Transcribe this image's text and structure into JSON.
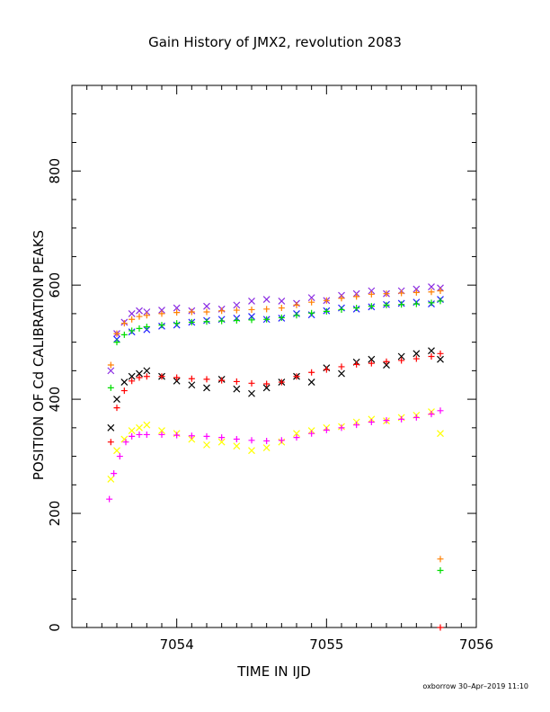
{
  "chart_data": {
    "type": "scatter",
    "title": "Gain History of JMX2, revolution 2083",
    "xlabel": "TIME IN IJD",
    "ylabel": "POSITION OF Cd CALIBRATION PEAKS",
    "xlim": [
      7053.3,
      7056.0
    ],
    "ylim": [
      0,
      950
    ],
    "xticks": [
      7054,
      7055,
      7056
    ],
    "yticks": [
      0,
      200,
      400,
      600,
      800
    ],
    "grid": false,
    "footer": "oxborrow 30–Apr–2019 11:10",
    "series": [
      {
        "color": "#8a2be2",
        "marker": "x",
        "points": [
          [
            7053.56,
            450
          ],
          [
            7053.6,
            515
          ],
          [
            7053.65,
            535
          ],
          [
            7053.7,
            550
          ],
          [
            7053.75,
            555
          ],
          [
            7053.8,
            553
          ],
          [
            7053.9,
            556
          ],
          [
            7054.0,
            560
          ],
          [
            7054.1,
            555
          ],
          [
            7054.2,
            563
          ],
          [
            7054.3,
            558
          ],
          [
            7054.4,
            565
          ],
          [
            7054.5,
            572
          ],
          [
            7054.6,
            575
          ],
          [
            7054.7,
            572
          ],
          [
            7054.8,
            568
          ],
          [
            7054.9,
            578
          ],
          [
            7055.0,
            573
          ],
          [
            7055.1,
            582
          ],
          [
            7055.2,
            585
          ],
          [
            7055.3,
            590
          ],
          [
            7055.4,
            585
          ],
          [
            7055.5,
            590
          ],
          [
            7055.6,
            593
          ],
          [
            7055.7,
            597
          ],
          [
            7055.76,
            595
          ]
        ]
      },
      {
        "color": "#ff7f00",
        "marker": "+",
        "points": [
          [
            7053.56,
            460
          ],
          [
            7053.6,
            515
          ],
          [
            7053.65,
            533
          ],
          [
            7053.7,
            540
          ],
          [
            7053.75,
            545
          ],
          [
            7053.8,
            547
          ],
          [
            7053.9,
            550
          ],
          [
            7054.0,
            552
          ],
          [
            7054.1,
            553
          ],
          [
            7054.2,
            553
          ],
          [
            7054.3,
            555
          ],
          [
            7054.4,
            556
          ],
          [
            7054.5,
            557
          ],
          [
            7054.6,
            558
          ],
          [
            7054.7,
            560
          ],
          [
            7054.8,
            565
          ],
          [
            7054.9,
            570
          ],
          [
            7055.0,
            573
          ],
          [
            7055.1,
            577
          ],
          [
            7055.2,
            580
          ],
          [
            7055.3,
            584
          ],
          [
            7055.4,
            585
          ],
          [
            7055.5,
            586
          ],
          [
            7055.6,
            587
          ],
          [
            7055.7,
            588
          ],
          [
            7055.76,
            590
          ],
          [
            7055.76,
            120
          ]
        ]
      },
      {
        "color": "#1f1fff",
        "marker": "x",
        "points": [
          [
            7053.6,
            505
          ],
          [
            7053.7,
            518
          ],
          [
            7053.8,
            522
          ],
          [
            7053.9,
            528
          ],
          [
            7054.0,
            530
          ],
          [
            7054.1,
            535
          ],
          [
            7054.2,
            538
          ],
          [
            7054.3,
            540
          ],
          [
            7054.4,
            542
          ],
          [
            7054.5,
            545
          ],
          [
            7054.6,
            540
          ],
          [
            7054.7,
            542
          ],
          [
            7054.8,
            550
          ],
          [
            7054.9,
            548
          ],
          [
            7055.0,
            555
          ],
          [
            7055.1,
            560
          ],
          [
            7055.2,
            558
          ],
          [
            7055.3,
            562
          ],
          [
            7055.4,
            566
          ],
          [
            7055.5,
            568
          ],
          [
            7055.6,
            570
          ],
          [
            7055.7,
            567
          ],
          [
            7055.76,
            575
          ]
        ]
      },
      {
        "color": "#00dd00",
        "marker": "+",
        "points": [
          [
            7053.56,
            420
          ],
          [
            7053.6,
            500
          ],
          [
            7053.65,
            513
          ],
          [
            7053.7,
            520
          ],
          [
            7053.75,
            524
          ],
          [
            7053.8,
            527
          ],
          [
            7053.9,
            530
          ],
          [
            7054.0,
            533
          ],
          [
            7054.1,
            535
          ],
          [
            7054.2,
            536
          ],
          [
            7054.3,
            537
          ],
          [
            7054.4,
            538
          ],
          [
            7054.5,
            539
          ],
          [
            7054.6,
            540
          ],
          [
            7054.7,
            543
          ],
          [
            7054.8,
            547
          ],
          [
            7054.9,
            551
          ],
          [
            7055.0,
            554
          ],
          [
            7055.1,
            557
          ],
          [
            7055.2,
            560
          ],
          [
            7055.3,
            563
          ],
          [
            7055.4,
            565
          ],
          [
            7055.5,
            566
          ],
          [
            7055.6,
            567
          ],
          [
            7055.7,
            569
          ],
          [
            7055.76,
            572
          ],
          [
            7055.76,
            100
          ]
        ]
      },
      {
        "color": "#000000",
        "marker": "x",
        "points": [
          [
            7053.56,
            350
          ],
          [
            7053.6,
            400
          ],
          [
            7053.65,
            430
          ],
          [
            7053.7,
            440
          ],
          [
            7053.75,
            445
          ],
          [
            7053.8,
            450
          ],
          [
            7053.9,
            440
          ],
          [
            7054.0,
            432
          ],
          [
            7054.1,
            425
          ],
          [
            7054.2,
            420
          ],
          [
            7054.3,
            435
          ],
          [
            7054.4,
            418
          ],
          [
            7054.5,
            410
          ],
          [
            7054.6,
            420
          ],
          [
            7054.7,
            430
          ],
          [
            7054.8,
            440
          ],
          [
            7054.9,
            430
          ],
          [
            7055.0,
            455
          ],
          [
            7055.1,
            445
          ],
          [
            7055.2,
            465
          ],
          [
            7055.3,
            470
          ],
          [
            7055.4,
            460
          ],
          [
            7055.5,
            475
          ],
          [
            7055.6,
            480
          ],
          [
            7055.7,
            485
          ],
          [
            7055.76,
            470
          ]
        ]
      },
      {
        "color": "#ff0000",
        "marker": "+",
        "points": [
          [
            7053.56,
            325
          ],
          [
            7053.6,
            385
          ],
          [
            7053.65,
            415
          ],
          [
            7053.7,
            432
          ],
          [
            7053.75,
            438
          ],
          [
            7053.8,
            440
          ],
          [
            7053.9,
            440
          ],
          [
            7054.0,
            438
          ],
          [
            7054.1,
            436
          ],
          [
            7054.2,
            435
          ],
          [
            7054.3,
            433
          ],
          [
            7054.4,
            431
          ],
          [
            7054.5,
            428
          ],
          [
            7054.6,
            427
          ],
          [
            7054.7,
            430
          ],
          [
            7054.8,
            440
          ],
          [
            7054.9,
            447
          ],
          [
            7055.0,
            452
          ],
          [
            7055.1,
            457
          ],
          [
            7055.2,
            461
          ],
          [
            7055.3,
            463
          ],
          [
            7055.4,
            466
          ],
          [
            7055.5,
            468
          ],
          [
            7055.6,
            471
          ],
          [
            7055.7,
            475
          ],
          [
            7055.76,
            480
          ],
          [
            7055.76,
            0
          ]
        ]
      },
      {
        "color": "#ffff00",
        "marker": "x",
        "points": [
          [
            7053.56,
            260
          ],
          [
            7053.6,
            310
          ],
          [
            7053.65,
            330
          ],
          [
            7053.7,
            345
          ],
          [
            7053.75,
            350
          ],
          [
            7053.8,
            355
          ],
          [
            7053.9,
            345
          ],
          [
            7054.0,
            340
          ],
          [
            7054.1,
            330
          ],
          [
            7054.2,
            320
          ],
          [
            7054.3,
            325
          ],
          [
            7054.4,
            318
          ],
          [
            7054.5,
            310
          ],
          [
            7054.6,
            315
          ],
          [
            7054.7,
            325
          ],
          [
            7054.8,
            340
          ],
          [
            7054.9,
            345
          ],
          [
            7055.0,
            350
          ],
          [
            7055.1,
            352
          ],
          [
            7055.2,
            360
          ],
          [
            7055.3,
            365
          ],
          [
            7055.4,
            362
          ],
          [
            7055.5,
            368
          ],
          [
            7055.6,
            372
          ],
          [
            7055.7,
            378
          ],
          [
            7055.76,
            340
          ]
        ]
      },
      {
        "color": "#ff00ff",
        "marker": "+",
        "points": [
          [
            7053.55,
            225
          ],
          [
            7053.58,
            270
          ],
          [
            7053.62,
            300
          ],
          [
            7053.66,
            325
          ],
          [
            7053.7,
            335
          ],
          [
            7053.75,
            338
          ],
          [
            7053.8,
            338
          ],
          [
            7053.9,
            338
          ],
          [
            7054.0,
            337
          ],
          [
            7054.1,
            336
          ],
          [
            7054.2,
            335
          ],
          [
            7054.3,
            333
          ],
          [
            7054.4,
            330
          ],
          [
            7054.5,
            328
          ],
          [
            7054.6,
            327
          ],
          [
            7054.7,
            328
          ],
          [
            7054.8,
            333
          ],
          [
            7054.9,
            340
          ],
          [
            7055.0,
            346
          ],
          [
            7055.1,
            350
          ],
          [
            7055.2,
            355
          ],
          [
            7055.3,
            360
          ],
          [
            7055.4,
            363
          ],
          [
            7055.5,
            365
          ],
          [
            7055.6,
            368
          ],
          [
            7055.7,
            374
          ],
          [
            7055.76,
            380
          ]
        ]
      }
    ]
  }
}
